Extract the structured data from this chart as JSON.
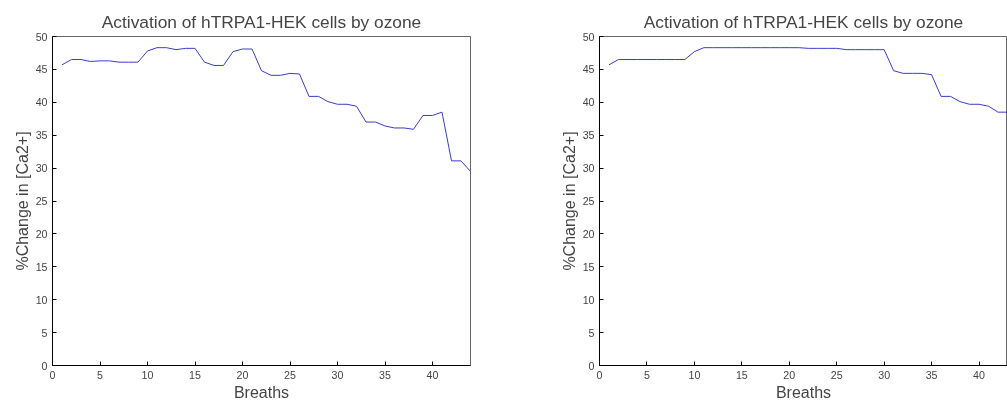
{
  "chart_data": [
    {
      "type": "line",
      "title": "Activation of hTRPA1-HEK cells by ozone",
      "xlabel": "Breaths",
      "ylabel": "%Change in [Ca2+]",
      "xlim": [
        0,
        44
      ],
      "ylim": [
        0,
        50
      ],
      "xticks": [
        0,
        5,
        10,
        15,
        20,
        25,
        30,
        35,
        40
      ],
      "yticks": [
        0,
        5,
        10,
        15,
        20,
        25,
        30,
        35,
        40,
        45,
        50
      ],
      "line_style": "solid",
      "series": [
        {
          "color": "#3b3bc8",
          "x": [
            1,
            2,
            3,
            4,
            5,
            6,
            7,
            8,
            9,
            10,
            11,
            12,
            13,
            14,
            15,
            16,
            17,
            18,
            19,
            20,
            21,
            22,
            23,
            24,
            25,
            26,
            27,
            28,
            29,
            30,
            31,
            32,
            33,
            34,
            35,
            36,
            37,
            38,
            39,
            40,
            41,
            42,
            43,
            44
          ],
          "values": [
            45.7,
            46.5,
            46.5,
            46.2,
            46.3,
            46.3,
            46.1,
            46.1,
            46.1,
            47.8,
            48.3,
            48.3,
            48.0,
            48.2,
            48.2,
            46.1,
            45.6,
            45.6,
            47.7,
            48.1,
            48.1,
            44.8,
            44.1,
            44.1,
            44.4,
            44.3,
            40.9,
            40.9,
            40.1,
            39.7,
            39.7,
            39.4,
            37.0,
            37.0,
            36.4,
            36.1,
            36.1,
            35.9,
            38.0,
            38.0,
            38.5,
            31.1,
            31.1,
            29.5
          ]
        }
      ]
    },
    {
      "type": "line",
      "title": "Activation of hTRPA1-HEK cells by ozone",
      "xlabel": "Breaths",
      "ylabel": "%Change in [Ca2+]",
      "xlim": [
        0,
        43
      ],
      "ylim": [
        0,
        50
      ],
      "xticks": [
        0,
        5,
        10,
        15,
        20,
        25,
        30,
        35,
        40
      ],
      "yticks": [
        0,
        5,
        10,
        15,
        20,
        25,
        30,
        35,
        40,
        45,
        50
      ],
      "line_style": "solid",
      "series": [
        {
          "color": "#3b3bc8",
          "x": [
            1,
            2,
            3,
            4,
            5,
            6,
            7,
            8,
            9,
            10,
            11,
            12,
            13,
            14,
            15,
            16,
            17,
            18,
            19,
            20,
            21,
            22,
            23,
            24,
            25,
            26,
            27,
            28,
            29,
            30,
            31,
            32,
            33,
            34,
            35,
            36,
            37,
            38,
            39,
            40,
            41,
            42,
            43
          ],
          "values": [
            45.7,
            46.5,
            46.5,
            46.5,
            46.5,
            46.5,
            46.5,
            46.5,
            46.5,
            47.7,
            48.3,
            48.3,
            48.3,
            48.3,
            48.3,
            48.3,
            48.3,
            48.3,
            48.3,
            48.3,
            48.3,
            48.2,
            48.2,
            48.2,
            48.2,
            48.0,
            48.0,
            48.0,
            48.0,
            48.0,
            44.8,
            44.4,
            44.4,
            44.4,
            44.2,
            40.9,
            40.9,
            40.1,
            39.7,
            39.7,
            39.4,
            38.5,
            38.5
          ]
        }
      ]
    }
  ]
}
